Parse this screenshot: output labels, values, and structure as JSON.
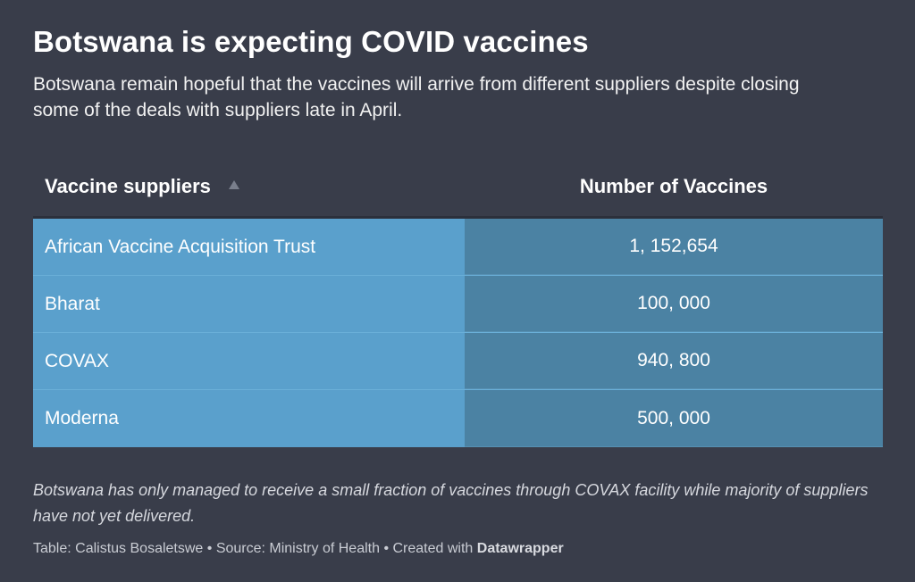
{
  "title": "Botswana is expecting COVID vaccines",
  "subtitle": "Botswana remain hopeful that the vaccines will arrive from different suppliers despite closing some of the deals with suppliers late in April.",
  "chart_data": {
    "type": "table",
    "columns": [
      "Vaccine suppliers",
      "Number of Vaccines"
    ],
    "sort_icon": "sort-ascending-icon",
    "rows": [
      {
        "supplier": "African Vaccine Acquisition Trust",
        "number": "1, 152,654"
      },
      {
        "supplier": "Bharat",
        "number": "100, 000"
      },
      {
        "supplier": "COVAX",
        "number": "940, 800"
      },
      {
        "supplier": "Moderna",
        "number": "500, 000"
      }
    ],
    "values": [
      1152654,
      100000,
      940800,
      500000
    ]
  },
  "notes": "Botswana has only managed to receive a small fraction of vaccines through COVAX facility while majority of suppliers have not yet delivered.",
  "footer": {
    "table_credit": "Table: Calistus Bosaletswe",
    "separator": " • ",
    "source": "Source: Ministry of Health",
    "created_with": "Created with ",
    "tool": "Datawrapper"
  },
  "colors": {
    "background": "#393d4a",
    "supplier_cell": "#5aa0cc",
    "number_cell": "#4b82a3"
  }
}
